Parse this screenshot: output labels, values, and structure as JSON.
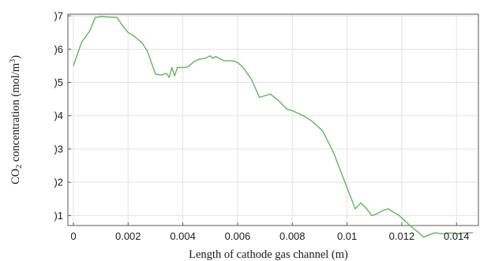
{
  "chart_data": {
    "type": "line",
    "xlabel": "Length of cathode gas channel (m)",
    "ylabel": {
      "prefix": "CO",
      "sub": "2",
      "middle": " concentration (mol/m",
      "sup": "3",
      "suffix": ")"
    },
    "x_ticks": [
      0,
      0.002,
      0.004,
      0.006,
      0.008,
      0.01,
      0.012,
      0.014
    ],
    "x_tick_labels": [
      "0",
      "0.002",
      "0.004",
      "0.006",
      "0.008",
      "0.01",
      "0.012",
      "0.014"
    ],
    "y_ticks": [
      1,
      2,
      3,
      4,
      5,
      6,
      7
    ],
    "y_tick_labels": [
      ")1",
      ")2",
      ")3",
      ")4",
      ")5",
      ")6",
      ")7"
    ],
    "xlim": [
      -0.0002,
      0.0148
    ],
    "ylim": [
      0.7,
      7.05
    ],
    "grid": true,
    "line_color": "#62b562",
    "series": [
      {
        "x": [
          0,
          0.0003,
          0.0006,
          0.0008,
          0.001,
          0.0012,
          0.0016,
          0.0018,
          0.002,
          0.0022,
          0.0025,
          0.0027,
          0.003,
          0.0032,
          0.0034,
          0.0035,
          0.0036,
          0.0037,
          0.0038,
          0.0041,
          0.0042,
          0.0044,
          0.0046,
          0.0048,
          0.005,
          0.0051,
          0.0052,
          0.0055,
          0.0058,
          0.006,
          0.0062,
          0.0065,
          0.0068,
          0.0072,
          0.0075,
          0.0078,
          0.008,
          0.0084,
          0.0087,
          0.0091,
          0.0095,
          0.0099,
          0.0103,
          0.0105,
          0.0107,
          0.0109,
          0.0111,
          0.0113,
          0.0115,
          0.0117,
          0.0119,
          0.0121,
          0.0123,
          0.0126,
          0.0128,
          0.013,
          0.0132,
          0.0135,
          0.0138,
          0.014,
          0.0143,
          0.0146
        ],
        "y": [
          5.5,
          6.2,
          6.55,
          6.95,
          6.98,
          6.97,
          6.95,
          6.7,
          6.5,
          6.4,
          6.2,
          5.95,
          5.25,
          5.22,
          5.27,
          5.15,
          5.45,
          5.2,
          5.45,
          5.45,
          5.48,
          5.62,
          5.7,
          5.72,
          5.8,
          5.72,
          5.78,
          5.65,
          5.65,
          5.6,
          5.45,
          5.1,
          4.55,
          4.65,
          4.45,
          4.2,
          4.15,
          4.0,
          3.85,
          3.55,
          2.9,
          2.05,
          1.2,
          1.38,
          1.22,
          1.0,
          1.05,
          1.15,
          1.2,
          1.1,
          1.0,
          0.85,
          0.7,
          0.5,
          0.35,
          0.42,
          0.48,
          0.45,
          0.48,
          0.45,
          0.48,
          0.48
        ]
      }
    ]
  }
}
